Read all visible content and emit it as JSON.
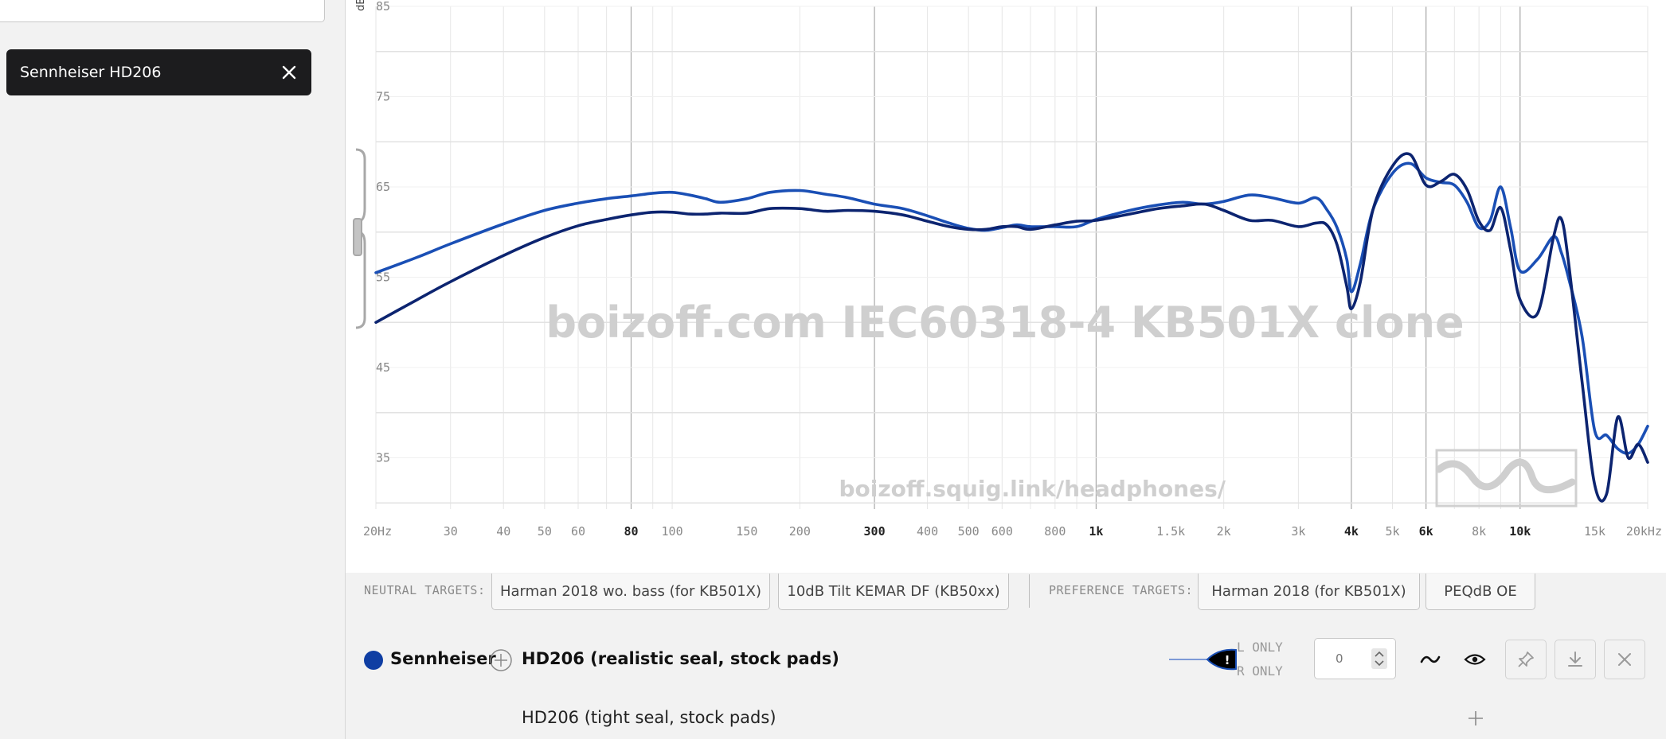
{
  "sidebar": {
    "selected_phone": "Sennheiser HD206"
  },
  "graph": {
    "y_unit": "dB",
    "y_ticks": [
      "85",
      "75",
      "65",
      "55",
      "45",
      "35"
    ],
    "x_ticks": [
      {
        "f": 20,
        "label": "20Hz",
        "major": false
      },
      {
        "f": 30,
        "label": "30",
        "major": false
      },
      {
        "f": 40,
        "label": "40",
        "major": false
      },
      {
        "f": 50,
        "label": "50",
        "major": false
      },
      {
        "f": 60,
        "label": "60",
        "major": false
      },
      {
        "f": 80,
        "label": "80",
        "major": true
      },
      {
        "f": 100,
        "label": "100",
        "major": false
      },
      {
        "f": 150,
        "label": "150",
        "major": false
      },
      {
        "f": 200,
        "label": "200",
        "major": false
      },
      {
        "f": 300,
        "label": "300",
        "major": true
      },
      {
        "f": 400,
        "label": "400",
        "major": false
      },
      {
        "f": 500,
        "label": "500",
        "major": false
      },
      {
        "f": 600,
        "label": "600",
        "major": false
      },
      {
        "f": 800,
        "label": "800",
        "major": false
      },
      {
        "f": 1000,
        "label": "1k",
        "major": true
      },
      {
        "f": 1500,
        "label": "1.5k",
        "major": false
      },
      {
        "f": 2000,
        "label": "2k",
        "major": false
      },
      {
        "f": 3000,
        "label": "3k",
        "major": false
      },
      {
        "f": 4000,
        "label": "4k",
        "major": true
      },
      {
        "f": 5000,
        "label": "5k",
        "major": false
      },
      {
        "f": 6000,
        "label": "6k",
        "major": true
      },
      {
        "f": 8000,
        "label": "8k",
        "major": false
      },
      {
        "f": 10000,
        "label": "10k",
        "major": true
      },
      {
        "f": 15000,
        "label": "15k",
        "major": false
      },
      {
        "f": 20000,
        "label": "20kHz",
        "major": false
      }
    ],
    "watermark_title": "boizoff.com IEC60318-4 KB501X clone",
    "watermark_url": "boizoff.squig.link/headphones/",
    "colors": {
      "curve_light": "#1a4fb5",
      "curve_dark": "#0c2470",
      "accent": "#0f3ea3"
    }
  },
  "chart_data": {
    "type": "line",
    "x_scale": "log",
    "xlim": [
      20,
      20000
    ],
    "ylim": [
      30,
      85
    ],
    "ylabel": "dB",
    "grid": true,
    "series": [
      {
        "x": [
          20,
          25,
          30,
          40,
          50,
          60,
          70,
          80,
          90,
          100,
          110,
          120,
          130,
          150,
          170,
          200,
          230,
          260,
          300,
          350,
          400,
          450,
          500,
          550,
          600,
          650,
          700,
          800,
          900,
          1000,
          1200,
          1400,
          1600,
          1800,
          2000,
          2300,
          2600,
          3000,
          3300,
          3500,
          3700,
          3900,
          4000,
          4200,
          4500,
          5000,
          5500,
          6000,
          6500,
          7000,
          7500,
          8000,
          8500,
          9000,
          9500,
          10000,
          11000,
          12000,
          12500,
          13000,
          14000,
          15000,
          16000,
          17000,
          18000,
          19000,
          20000
        ],
        "y": [
          55.5,
          57.2,
          58.7,
          60.9,
          62.4,
          63.2,
          63.7,
          64,
          64.3,
          64.4,
          64.1,
          63.7,
          63.3,
          63.7,
          64.4,
          64.6,
          64.2,
          63.8,
          63.1,
          62.6,
          61.8,
          61,
          60.4,
          60.2,
          60.5,
          60.8,
          60.6,
          60.6,
          60.6,
          61.4,
          62.4,
          63,
          63.3,
          63.1,
          63.4,
          64.1,
          63.8,
          63.2,
          63.8,
          62.5,
          60.5,
          57,
          53.4,
          56.5,
          62.5,
          66.5,
          67.6,
          66,
          65.5,
          65.2,
          63.3,
          60.5,
          61.3,
          65,
          60.5,
          55.7,
          57,
          59.5,
          57.8,
          55,
          48.5,
          38,
          37.5,
          36,
          35.5,
          36.5,
          38.5
        ]
      },
      {
        "x": [
          20,
          25,
          30,
          40,
          50,
          60,
          70,
          80,
          90,
          100,
          110,
          120,
          130,
          150,
          170,
          200,
          230,
          260,
          300,
          350,
          400,
          450,
          500,
          550,
          600,
          650,
          700,
          800,
          900,
          1000,
          1200,
          1400,
          1600,
          1800,
          2000,
          2300,
          2600,
          3000,
          3300,
          3500,
          3700,
          3900,
          4000,
          4200,
          4500,
          5000,
          5500,
          6000,
          6500,
          7000,
          7500,
          8000,
          8500,
          9000,
          9500,
          10000,
          11000,
          12000,
          12500,
          13000,
          14000,
          15000,
          16000,
          17000,
          18000,
          19000,
          20000
        ],
        "y": [
          50,
          52.5,
          54.5,
          57.4,
          59.4,
          60.7,
          61.4,
          61.9,
          62.2,
          62.2,
          62,
          62,
          62.1,
          62.1,
          62.6,
          62.6,
          62.3,
          62.4,
          62.3,
          61.9,
          61.2,
          60.6,
          60.3,
          60.3,
          60.6,
          60.6,
          60.3,
          60.8,
          61.2,
          61.3,
          62,
          62.6,
          62.9,
          63.1,
          62.4,
          61.3,
          61.3,
          60.6,
          61,
          60.8,
          58.6,
          54,
          51.5,
          54.5,
          62.5,
          67.3,
          68.6,
          65.2,
          65.6,
          66.4,
          64.7,
          61.2,
          60.2,
          62.7,
          58,
          52.5,
          51,
          59.5,
          61.5,
          56.8,
          43.5,
          32,
          31,
          39.5,
          35,
          36.5,
          34.5
        ]
      }
    ]
  },
  "targets": {
    "neutral_label": "NEUTRAL TARGETS:",
    "neutral": [
      "Harman 2018 wo. bass (for KB501X)",
      "10dB Tilt KEMAR DF (KB50xx)"
    ],
    "preference_label": "PREFERENCE TARGETS:",
    "preference": [
      "Harman 2018 (for KB501X)",
      "PEQdB OE"
    ]
  },
  "phone": {
    "brand": "Sennheiser",
    "variant_active": "HD206 (realistic seal, stock pads)",
    "variant_alt": "HD206 (tight seal, stock pads)",
    "channel_warning": "!",
    "l_only": "L ONLY",
    "r_only": "R ONLY",
    "offset_value": "0",
    "icons": [
      "smooth-icon",
      "eye-icon",
      "pin-icon",
      "download-icon",
      "close-icon"
    ]
  }
}
